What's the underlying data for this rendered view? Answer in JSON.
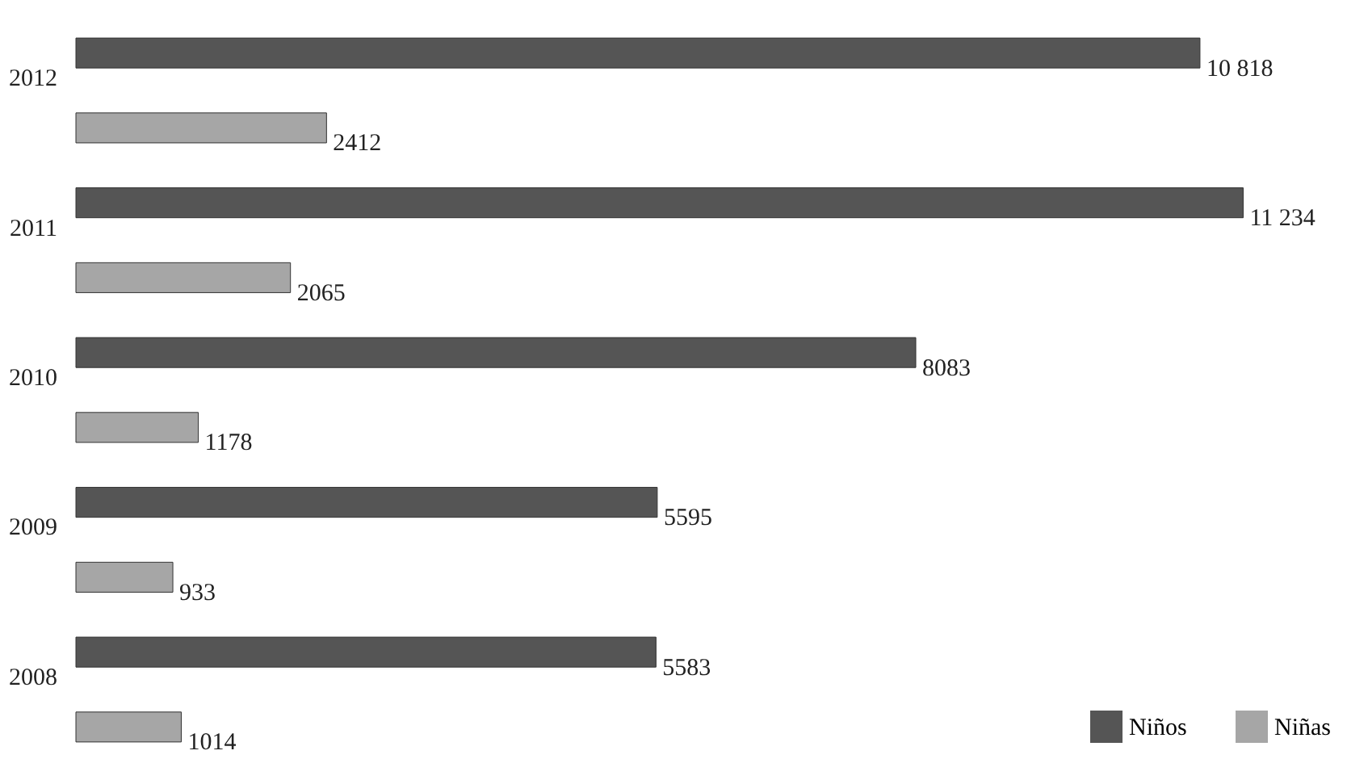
{
  "chart_data": {
    "type": "bar",
    "orientation": "horizontal",
    "categories": [
      "2012",
      "2011",
      "2010",
      "2009",
      "2008"
    ],
    "series": [
      {
        "name": "Niños",
        "color": "#555555",
        "values": [
          10818,
          11234,
          8083,
          5595,
          5583
        ],
        "value_labels": [
          "10 818",
          "11 234",
          "8083",
          "5595",
          "5583"
        ]
      },
      {
        "name": "Niñas",
        "color": "#a6a6a6",
        "values": [
          2412,
          2065,
          1178,
          933,
          1014
        ],
        "value_labels": [
          "2412",
          "2065",
          "1178",
          "933",
          "1014"
        ]
      }
    ],
    "legend": "bottom right"
  }
}
